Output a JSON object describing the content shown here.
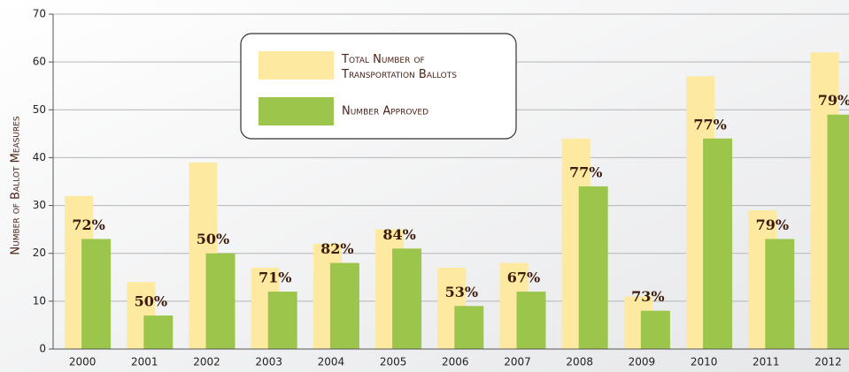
{
  "chart_data": {
    "type": "bar",
    "ylabel": "Number of Ballot Measures",
    "categories": [
      "2000",
      "2001",
      "2002",
      "2003",
      "2004",
      "2005",
      "2006",
      "2007",
      "2008",
      "2009",
      "2010",
      "2011",
      "2012"
    ],
    "series": [
      {
        "name": "Total Number of Transportation Ballots",
        "color": "#fde9a0",
        "values": [
          32,
          14,
          39,
          17,
          22,
          25,
          17,
          18,
          44,
          11,
          57,
          29,
          62
        ]
      },
      {
        "name": "Number Approved",
        "color": "#9cc54c",
        "values": [
          23,
          7,
          20,
          12,
          18,
          21,
          9,
          12,
          34,
          8,
          44,
          23,
          49
        ]
      }
    ],
    "annotations": [
      "72%",
      "50%",
      "50%",
      "71%",
      "82%",
      "84%",
      "53%",
      "67%",
      "77%",
      "73%",
      "77%",
      "79%",
      "79%"
    ],
    "ylim": [
      0,
      70
    ],
    "yticks": [
      0,
      10,
      20,
      30,
      40,
      50,
      60,
      70
    ],
    "grid": true,
    "legend": "top-center"
  }
}
